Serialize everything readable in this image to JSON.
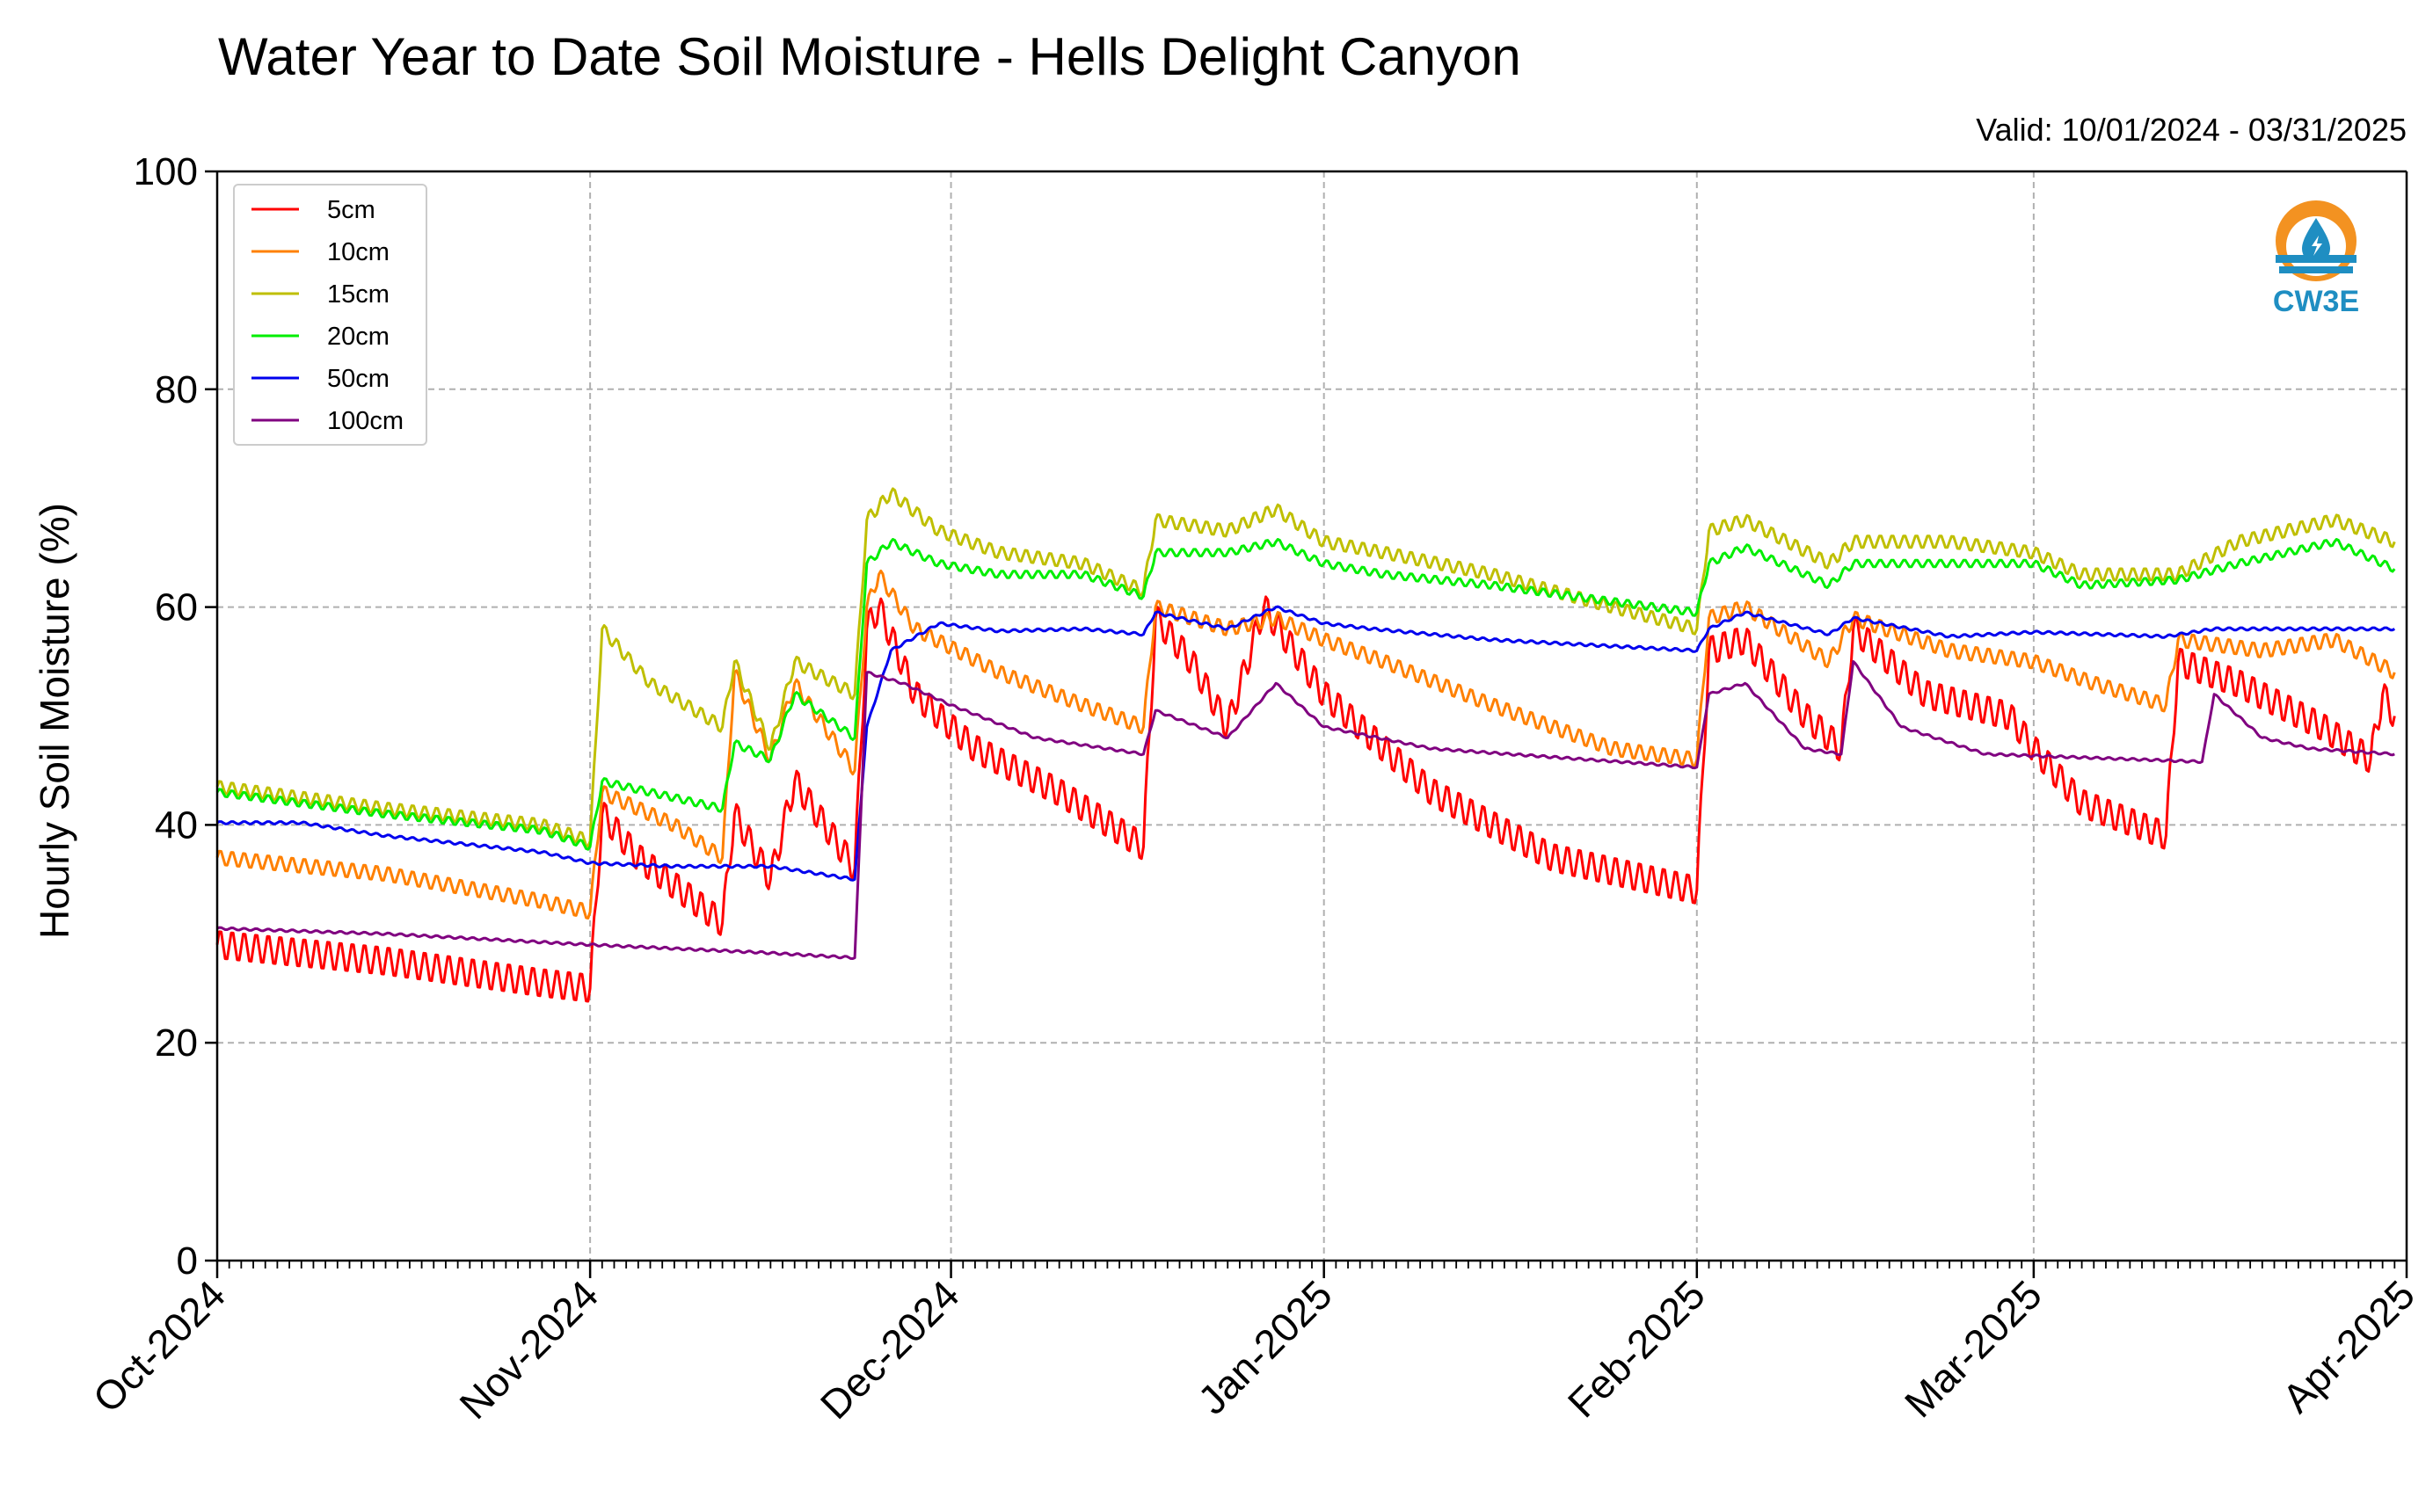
{
  "header": {
    "title": "Water Year to Date Soil Moisture - Hells Delight Canyon",
    "valid": "Valid: 10/01/2024 - 03/31/2025"
  },
  "logo": {
    "text": "CW3E",
    "colors": {
      "orange": "#f39221",
      "teal": "#1f8ec2",
      "dark_teal": "#166b8f"
    }
  },
  "chart_data": {
    "type": "line",
    "title": "Water Year to Date Soil Moisture - Hells Delight Canyon",
    "xlabel": "",
    "ylabel": "Hourly Soil Moisture (%)",
    "x_start": "2024-10-01",
    "x_end": "2025-04-01",
    "xlim": [
      "2024-10-01",
      "2025-04-01"
    ],
    "ylim": [
      0,
      100
    ],
    "y_ticks": [
      0,
      20,
      40,
      60,
      80,
      100
    ],
    "x_ticks": [
      {
        "date": "2024-10-01",
        "label": "Oct-2024"
      },
      {
        "date": "2024-11-01",
        "label": "Nov-2024"
      },
      {
        "date": "2024-12-01",
        "label": "Dec-2024"
      },
      {
        "date": "2025-01-01",
        "label": "Jan-2025"
      },
      {
        "date": "2025-02-01",
        "label": "Feb-2025"
      },
      {
        "date": "2025-03-01",
        "label": "Mar-2025"
      },
      {
        "date": "2025-04-01",
        "label": "Apr-2025"
      }
    ],
    "grid": true,
    "legend_position": "top-left",
    "series": [
      {
        "name": "5cm",
        "color": "#ff0000",
        "points": [
          [
            "2024-10-01",
            29
          ],
          [
            "2024-10-15",
            27.5
          ],
          [
            "2024-10-28",
            25.5
          ],
          [
            "2024-11-01",
            25
          ],
          [
            "2024-11-02",
            41
          ],
          [
            "2024-11-05",
            37
          ],
          [
            "2024-11-12",
            31
          ],
          [
            "2024-11-13",
            41
          ],
          [
            "2024-11-16",
            35
          ],
          [
            "2024-11-18",
            44
          ],
          [
            "2024-11-23",
            36
          ],
          [
            "2024-11-24",
            58
          ],
          [
            "2024-11-25",
            60
          ],
          [
            "2024-11-28",
            52
          ],
          [
            "2024-12-03",
            47
          ],
          [
            "2024-12-10",
            43
          ],
          [
            "2024-12-17",
            38
          ],
          [
            "2024-12-18",
            59
          ],
          [
            "2024-12-21",
            55
          ],
          [
            "2024-12-24",
            49
          ],
          [
            "2024-12-27",
            60
          ],
          [
            "2025-01-01",
            52
          ],
          [
            "2025-01-04",
            49
          ],
          [
            "2025-01-10",
            43
          ],
          [
            "2025-01-20",
            37
          ],
          [
            "2025-02-01",
            34
          ],
          [
            "2025-02-02",
            56
          ],
          [
            "2025-02-05",
            57
          ],
          [
            "2025-02-10",
            50
          ],
          [
            "2025-02-13",
            47
          ],
          [
            "2025-02-14",
            58
          ],
          [
            "2025-02-20",
            52
          ],
          [
            "2025-02-27",
            50
          ],
          [
            "2025-03-01",
            47
          ],
          [
            "2025-03-05",
            42
          ],
          [
            "2025-03-12",
            39
          ],
          [
            "2025-03-13",
            55
          ],
          [
            "2025-03-18",
            53
          ],
          [
            "2025-03-25",
            49
          ],
          [
            "2025-03-29",
            46
          ],
          [
            "2025-03-30",
            52
          ],
          [
            "2025-03-31",
            50
          ]
        ]
      },
      {
        "name": "10cm",
        "color": "#ff8000",
        "points": [
          [
            "2024-10-01",
            37
          ],
          [
            "2024-10-15",
            35.5
          ],
          [
            "2024-10-28",
            33
          ],
          [
            "2024-11-01",
            32
          ],
          [
            "2024-11-02",
            43
          ],
          [
            "2024-11-08",
            40
          ],
          [
            "2024-11-12",
            37
          ],
          [
            "2024-11-13",
            54
          ],
          [
            "2024-11-16",
            46
          ],
          [
            "2024-11-18",
            53
          ],
          [
            "2024-11-23",
            45
          ],
          [
            "2024-11-24",
            60
          ],
          [
            "2024-11-25",
            63
          ],
          [
            "2024-11-28",
            58
          ],
          [
            "2024-12-05",
            54
          ],
          [
            "2024-12-12",
            51
          ],
          [
            "2024-12-17",
            49
          ],
          [
            "2024-12-18",
            60
          ],
          [
            "2024-12-24",
            58
          ],
          [
            "2024-12-28",
            59
          ],
          [
            "2025-01-01",
            57
          ],
          [
            "2025-01-06",
            55
          ],
          [
            "2025-01-15",
            51
          ],
          [
            "2025-01-25",
            47
          ],
          [
            "2025-02-01",
            46
          ],
          [
            "2025-02-02",
            59
          ],
          [
            "2025-02-05",
            60
          ],
          [
            "2025-02-12",
            55
          ],
          [
            "2025-02-14",
            59
          ],
          [
            "2025-02-22",
            56
          ],
          [
            "2025-03-01",
            55
          ],
          [
            "2025-03-06",
            53
          ],
          [
            "2025-03-12",
            51
          ],
          [
            "2025-03-13",
            57
          ],
          [
            "2025-03-20",
            56
          ],
          [
            "2025-03-26",
            57
          ],
          [
            "2025-03-31",
            54
          ]
        ]
      },
      {
        "name": "15cm",
        "color": "#bfbf00",
        "points": [
          [
            "2024-10-01",
            43.5
          ],
          [
            "2024-10-15",
            41.5
          ],
          [
            "2024-10-28",
            40
          ],
          [
            "2024-11-01",
            38.5
          ],
          [
            "2024-11-02",
            58
          ],
          [
            "2024-11-06",
            53
          ],
          [
            "2024-11-12",
            49
          ],
          [
            "2024-11-13",
            55
          ],
          [
            "2024-11-16",
            47
          ],
          [
            "2024-11-18",
            55
          ],
          [
            "2024-11-23",
            52
          ],
          [
            "2024-11-24",
            68
          ],
          [
            "2024-11-26",
            70.5
          ],
          [
            "2024-11-30",
            67
          ],
          [
            "2024-12-05",
            65
          ],
          [
            "2024-12-12",
            64
          ],
          [
            "2024-12-17",
            61.5
          ],
          [
            "2024-12-18",
            68
          ],
          [
            "2024-12-24",
            67
          ],
          [
            "2024-12-28",
            69
          ],
          [
            "2025-01-01",
            66
          ],
          [
            "2025-01-06",
            65
          ],
          [
            "2025-01-15",
            63
          ],
          [
            "2025-01-25",
            60
          ],
          [
            "2025-02-01",
            58
          ],
          [
            "2025-02-02",
            67
          ],
          [
            "2025-02-05",
            68
          ],
          [
            "2025-02-12",
            64
          ],
          [
            "2025-02-14",
            66
          ],
          [
            "2025-02-22",
            66
          ],
          [
            "2025-03-01",
            65
          ],
          [
            "2025-03-05",
            63
          ],
          [
            "2025-03-13",
            63
          ],
          [
            "2025-03-18",
            66
          ],
          [
            "2025-03-26",
            68
          ],
          [
            "2025-03-31",
            66
          ]
        ]
      },
      {
        "name": "20cm",
        "color": "#00ee00",
        "points": [
          [
            "2024-10-01",
            43
          ],
          [
            "2024-10-15",
            41
          ],
          [
            "2024-10-28",
            39.5
          ],
          [
            "2024-11-01",
            38
          ],
          [
            "2024-11-02",
            44
          ],
          [
            "2024-11-08",
            42.5
          ],
          [
            "2024-11-12",
            41.5
          ],
          [
            "2024-11-13",
            47.5
          ],
          [
            "2024-11-16",
            46
          ],
          [
            "2024-11-18",
            52
          ],
          [
            "2024-11-23",
            48
          ],
          [
            "2024-11-24",
            64
          ],
          [
            "2024-11-26",
            66
          ],
          [
            "2024-11-30",
            64
          ],
          [
            "2024-12-05",
            63
          ],
          [
            "2024-12-12",
            63
          ],
          [
            "2024-12-17",
            61
          ],
          [
            "2024-12-18",
            65
          ],
          [
            "2024-12-24",
            65
          ],
          [
            "2024-12-28",
            66
          ],
          [
            "2025-01-01",
            64
          ],
          [
            "2025-01-06",
            63
          ],
          [
            "2025-01-15",
            62
          ],
          [
            "2025-01-25",
            60.5
          ],
          [
            "2025-02-01",
            59.5
          ],
          [
            "2025-02-02",
            64
          ],
          [
            "2025-02-05",
            65.5
          ],
          [
            "2025-02-12",
            62
          ],
          [
            "2025-02-14",
            64
          ],
          [
            "2025-02-22",
            64
          ],
          [
            "2025-03-01",
            64
          ],
          [
            "2025-03-05",
            62
          ],
          [
            "2025-03-13",
            62.5
          ],
          [
            "2025-03-18",
            64
          ],
          [
            "2025-03-26",
            66
          ],
          [
            "2025-03-31",
            63.5
          ]
        ]
      },
      {
        "name": "50cm",
        "color": "#0000ee",
        "points": [
          [
            "2024-10-01",
            40.2
          ],
          [
            "2024-10-08",
            40.2
          ],
          [
            "2024-10-15",
            39
          ],
          [
            "2024-10-28",
            37.5
          ],
          [
            "2024-11-01",
            36.5
          ],
          [
            "2024-11-08",
            36.2
          ],
          [
            "2024-11-16",
            36.2
          ],
          [
            "2024-11-23",
            35
          ],
          [
            "2024-11-24",
            49
          ],
          [
            "2024-11-26",
            56
          ],
          [
            "2024-11-30",
            58.5
          ],
          [
            "2024-12-05",
            57.8
          ],
          [
            "2024-12-12",
            58
          ],
          [
            "2024-12-17",
            57.5
          ],
          [
            "2024-12-18",
            59.5
          ],
          [
            "2024-12-24",
            58
          ],
          [
            "2024-12-28",
            60
          ],
          [
            "2025-01-01",
            58.5
          ],
          [
            "2025-01-05",
            58
          ],
          [
            "2025-01-15",
            57
          ],
          [
            "2025-02-01",
            56
          ],
          [
            "2025-02-02",
            58
          ],
          [
            "2025-02-05",
            59.5
          ],
          [
            "2025-02-12",
            57.5
          ],
          [
            "2025-02-14",
            59
          ],
          [
            "2025-02-22",
            57.3
          ],
          [
            "2025-03-01",
            57.7
          ],
          [
            "2025-03-12",
            57.3
          ],
          [
            "2025-03-16",
            58
          ],
          [
            "2025-03-26",
            58
          ],
          [
            "2025-03-31",
            58
          ]
        ]
      },
      {
        "name": "100cm",
        "color": "#800080",
        "points": [
          [
            "2024-10-01",
            30.5
          ],
          [
            "2024-10-15",
            30
          ],
          [
            "2024-11-01",
            29
          ],
          [
            "2024-11-15",
            28.3
          ],
          [
            "2024-11-23",
            27.8
          ],
          [
            "2024-11-24",
            54
          ],
          [
            "2024-11-27",
            53
          ],
          [
            "2024-12-01",
            51
          ],
          [
            "2024-12-08",
            48
          ],
          [
            "2024-12-17",
            46.5
          ],
          [
            "2024-12-18",
            50.5
          ],
          [
            "2024-12-24",
            48
          ],
          [
            "2024-12-28",
            53
          ],
          [
            "2025-01-01",
            49
          ],
          [
            "2025-01-10",
            47
          ],
          [
            "2025-02-01",
            45.3
          ],
          [
            "2025-02-02",
            52
          ],
          [
            "2025-02-05",
            53
          ],
          [
            "2025-02-10",
            47
          ],
          [
            "2025-02-13",
            46.5
          ],
          [
            "2025-02-14",
            55
          ],
          [
            "2025-02-18",
            49
          ],
          [
            "2025-02-25",
            46.5
          ],
          [
            "2025-03-10",
            46
          ],
          [
            "2025-03-15",
            45.8
          ],
          [
            "2025-03-16",
            52
          ],
          [
            "2025-03-20",
            48
          ],
          [
            "2025-03-24",
            47
          ],
          [
            "2025-03-31",
            46.5
          ]
        ]
      }
    ]
  }
}
